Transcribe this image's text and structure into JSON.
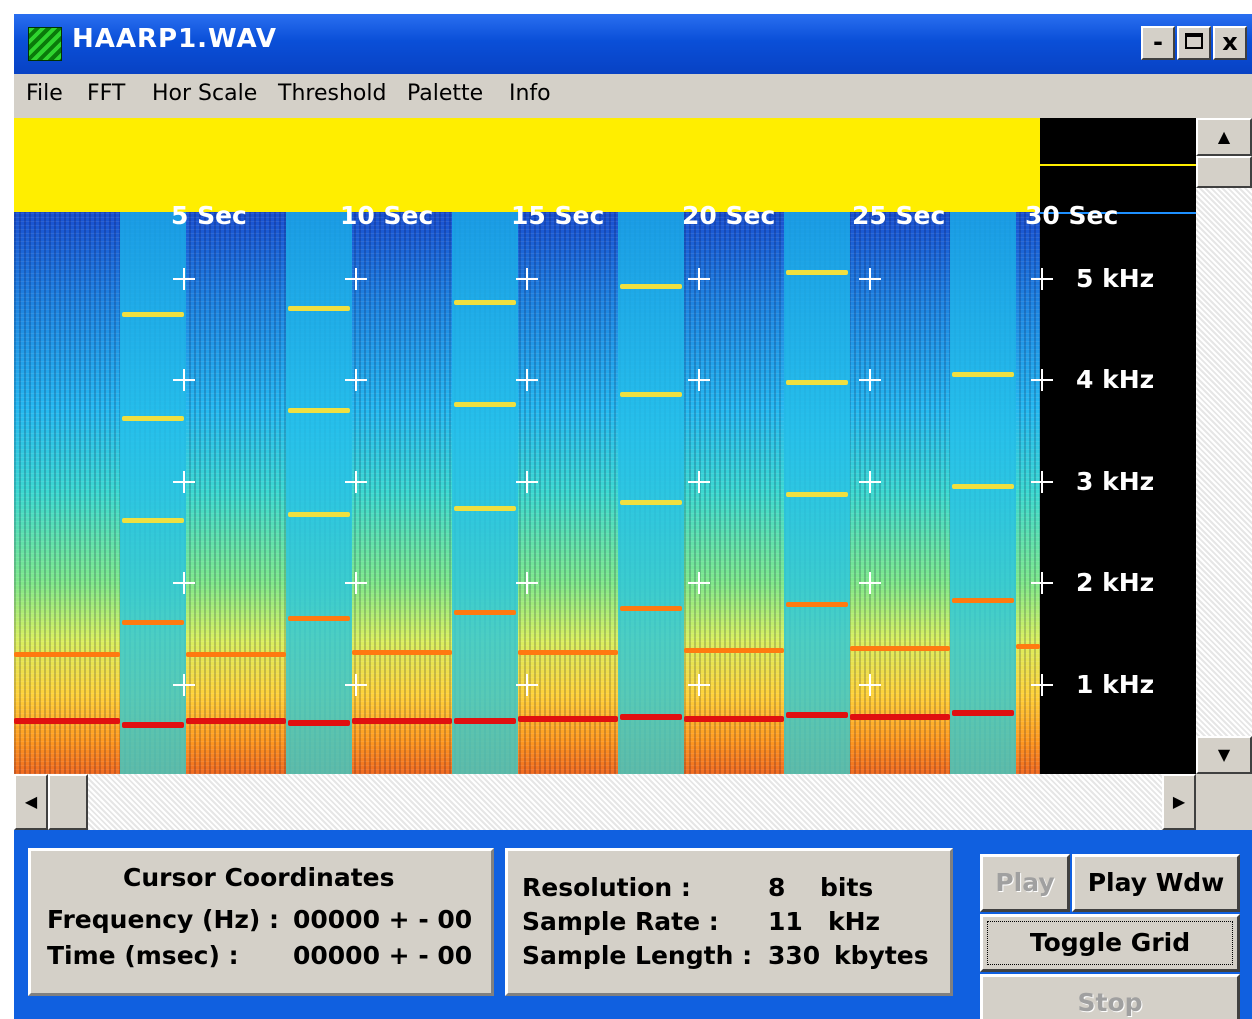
{
  "window": {
    "title": "HAARP1.WAV",
    "minimize": "-",
    "maximize": "□",
    "close": "x"
  },
  "menu": [
    {
      "label": "File"
    },
    {
      "label": "FFT"
    },
    {
      "label": "Hor Scale"
    },
    {
      "label": "Threshold"
    },
    {
      "label": "Palette"
    },
    {
      "label": "Info"
    }
  ],
  "spectrogram": {
    "time_labels": [
      "5 Sec",
      "10 Sec",
      "15 Sec",
      "20 Sec",
      "25 Sec",
      "30 Sec"
    ],
    "freq_labels": [
      "5 kHz",
      "4 kHz",
      "3 kHz",
      "2 kHz",
      "1 kHz"
    ],
    "colors": {
      "band": "#ffee00",
      "background": "#000000"
    }
  },
  "cursor_panel": {
    "heading": "Cursor Coordinates",
    "frequency_label": "Frequency (Hz) :",
    "frequency_value": "00000 + - 00",
    "time_label": "Time (msec) :",
    "time_value": "00000 + - 00"
  },
  "info_panel": {
    "resolution_label": "Resolution :",
    "resolution_value": "8",
    "resolution_unit": "bits",
    "sample_rate_label": "Sample Rate :",
    "sample_rate_value": "11",
    "sample_rate_unit": "kHz",
    "sample_length_label": "Sample Length :",
    "sample_length_value": "330",
    "sample_length_unit": "kbytes"
  },
  "buttons": {
    "play": "Play",
    "play_window": "Play Wdw",
    "toggle_grid": "Toggle Grid",
    "stop": "Stop"
  },
  "scrollbar_arrows": {
    "up": "▲",
    "down": "▼",
    "left": "◀",
    "right": "▶"
  }
}
